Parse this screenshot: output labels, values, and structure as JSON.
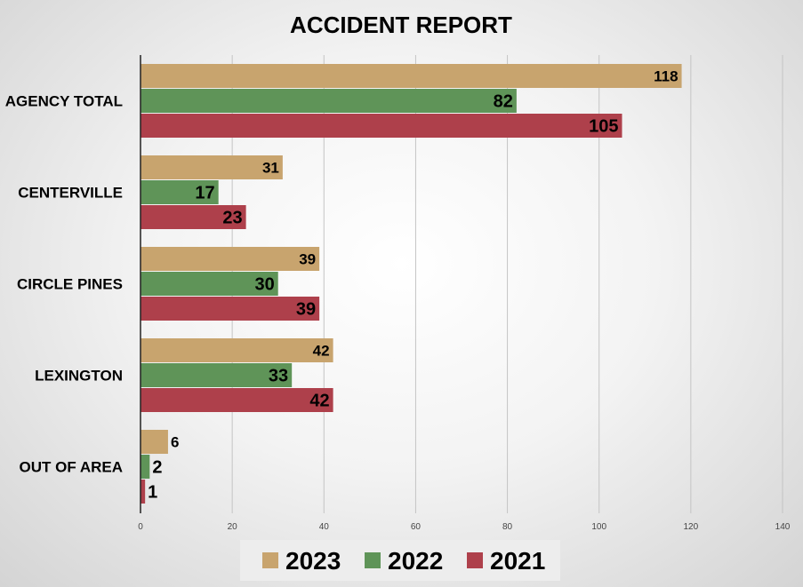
{
  "chart_data": {
    "type": "bar",
    "orientation": "horizontal",
    "title": "ACCIDENT REPORT",
    "xlabel": "",
    "ylabel": "",
    "categories": [
      "AGENCY TOTAL",
      "CENTERVILLE",
      "CIRCLE PINES",
      "LEXINGTON",
      "OUT OF AREA"
    ],
    "series": [
      {
        "name": "2023",
        "color": "#c8a46e",
        "values": [
          118,
          31,
          39,
          42,
          6
        ]
      },
      {
        "name": "2022",
        "color": "#5f9458",
        "values": [
          82,
          17,
          30,
          33,
          2
        ]
      },
      {
        "name": "2021",
        "color": "#ae404b",
        "values": [
          105,
          23,
          39,
          42,
          1
        ]
      }
    ],
    "xlim": [
      0,
      140
    ],
    "xticks": [
      0,
      20,
      40,
      60,
      80,
      100,
      120,
      140
    ],
    "grid": true,
    "legend_position": "bottom",
    "data_labels": true
  }
}
